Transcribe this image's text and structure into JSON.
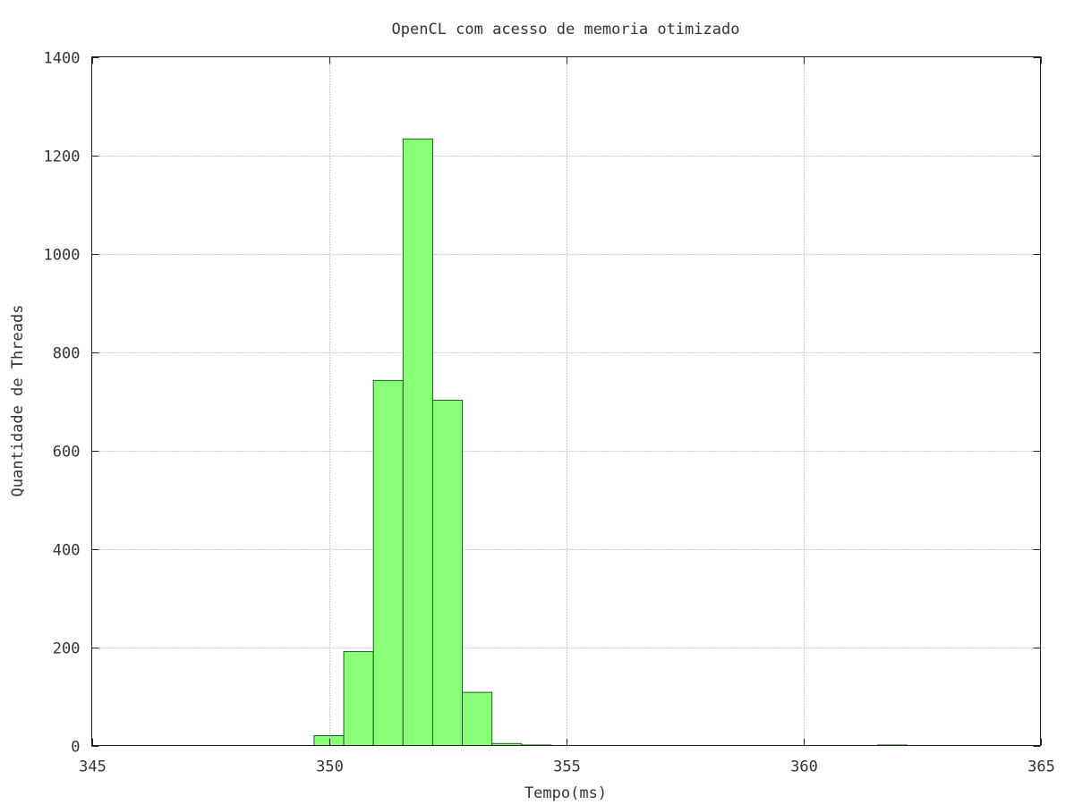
{
  "chart_data": {
    "type": "bar",
    "title": "OpenCL com acesso de memoria otimizado",
    "xlabel": "Tempo(ms)",
    "ylabel": "Quantidade de Threads",
    "xlim": [
      345,
      365
    ],
    "ylim": [
      0,
      1400
    ],
    "x_ticks": [
      345,
      350,
      355,
      360,
      365
    ],
    "y_ticks": [
      0,
      200,
      400,
      600,
      800,
      1000,
      1200,
      1400
    ],
    "grid": true,
    "bar_color": "#88ff77",
    "bin_width": 0.625,
    "bins": [
      {
        "x_start": 349.6875,
        "value": 20
      },
      {
        "x_start": 350.3125,
        "value": 191
      },
      {
        "x_start": 350.9375,
        "value": 742
      },
      {
        "x_start": 351.5625,
        "value": 1233
      },
      {
        "x_start": 352.1875,
        "value": 702
      },
      {
        "x_start": 352.8125,
        "value": 108
      },
      {
        "x_start": 353.4375,
        "value": 4
      },
      {
        "x_start": 354.0625,
        "value": 1
      },
      {
        "x_start": 361.5625,
        "value": 1
      }
    ]
  }
}
